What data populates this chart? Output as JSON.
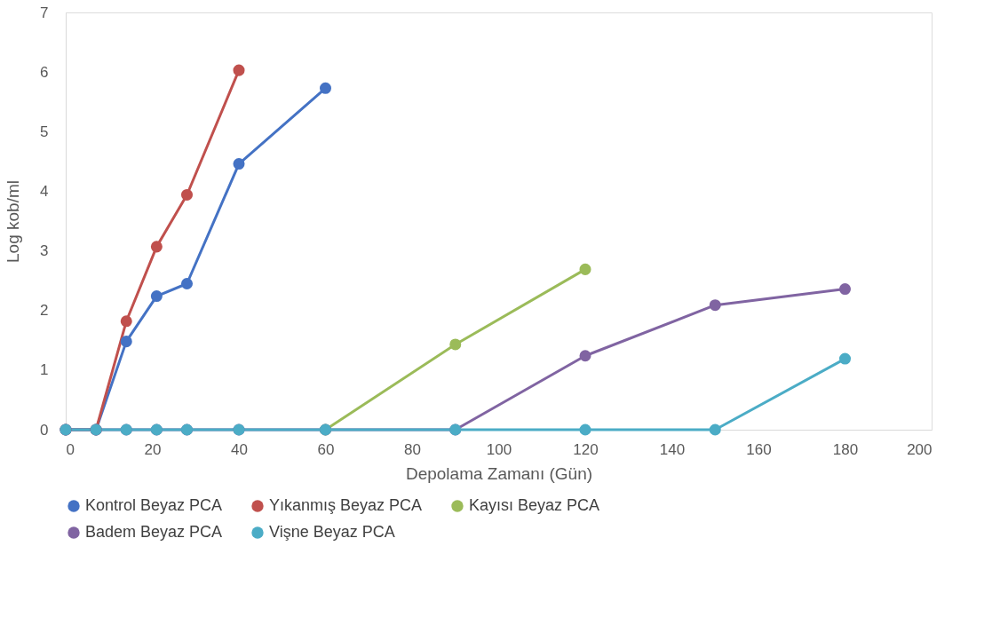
{
  "chart_data": {
    "type": "line",
    "xlabel": "Depolama Zamanı (Gün)",
    "ylabel": "Log kob/ml",
    "xlim": [
      0,
      200
    ],
    "xticks": [
      0,
      20,
      40,
      60,
      80,
      100,
      120,
      140,
      160,
      180,
      200
    ],
    "ylim": [
      0,
      7
    ],
    "yticks": [
      0,
      1,
      2,
      3,
      4,
      5,
      6,
      7
    ],
    "grid": false,
    "legend": "bottom",
    "marker": "circle",
    "line_style": "solid",
    "series": [
      {
        "name": "Kontrol Beyaz PCA",
        "color": "#4472c4",
        "x": [
          0,
          7,
          14,
          21,
          28,
          40,
          60
        ],
        "values": [
          0,
          0,
          1.48,
          2.24,
          2.45,
          4.46,
          5.73
        ]
      },
      {
        "name": "Yıkanmış Beyaz PCA",
        "color": "#c0504d",
        "x": [
          0,
          7,
          14,
          21,
          28,
          40
        ],
        "values": [
          0,
          0,
          1.82,
          3.07,
          3.94,
          6.03
        ]
      },
      {
        "name": "Kayısı Beyaz PCA",
        "color": "#9bbb59",
        "x": [
          60,
          90,
          120
        ],
        "values": [
          0,
          1.43,
          2.69
        ]
      },
      {
        "name": "Badem Beyaz PCA",
        "color": "#8064a2",
        "x": [
          0,
          7,
          14,
          21,
          28,
          40,
          60,
          90,
          120,
          150,
          180
        ],
        "values": [
          0,
          0,
          0,
          0,
          0,
          0,
          0,
          0,
          1.24,
          2.09,
          2.36
        ]
      },
      {
        "name": "Vişne Beyaz PCA",
        "color": "#4bacc6",
        "x": [
          0,
          7,
          14,
          21,
          28,
          40,
          60,
          90,
          120,
          150,
          180
        ],
        "values": [
          0,
          0,
          0,
          0,
          0,
          0,
          0,
          0,
          0,
          0,
          1.19
        ]
      }
    ]
  }
}
